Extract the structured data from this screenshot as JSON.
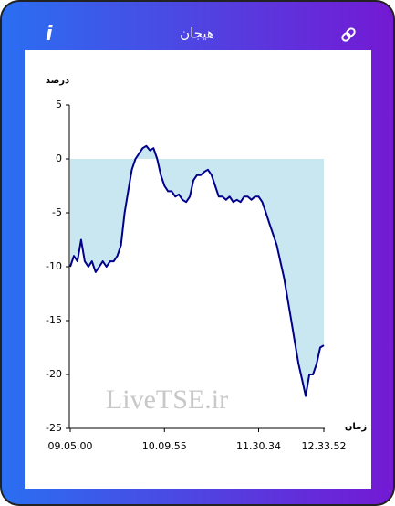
{
  "header": {
    "title": "هیجان",
    "info": "i"
  },
  "chart_data": {
    "type": "line",
    "y_label": "درصد",
    "x_label": "زمان",
    "watermark": "LiveTSE.ir",
    "categories": [
      "09.05.00",
      null,
      null,
      null,
      null,
      null,
      null,
      null,
      null,
      null,
      null,
      null,
      null,
      null,
      null,
      null,
      null,
      null,
      null,
      null,
      null,
      null,
      null,
      null,
      null,
      null,
      "10.09.55",
      null,
      null,
      null,
      null,
      null,
      null,
      null,
      null,
      null,
      null,
      null,
      null,
      null,
      null,
      null,
      null,
      null,
      null,
      null,
      null,
      null,
      null,
      null,
      null,
      null,
      "11.30.34",
      null,
      null,
      null,
      null,
      null,
      null,
      null,
      null,
      null,
      null,
      null,
      null,
      null,
      null,
      null,
      null,
      null,
      "12.33.52"
    ],
    "series": [
      {
        "color": "#00008b",
        "fill_color": "#c9e7f1",
        "values": [
          -10,
          -9,
          -9.5,
          -7.5,
          -9.5,
          -10,
          -9.5,
          -10.5,
          -10,
          -9.5,
          -10,
          -9.5,
          -9.5,
          -9,
          -8,
          -5,
          -3,
          -1,
          0,
          0.5,
          1,
          1.2,
          0.8,
          1,
          0,
          -1.5,
          -2.5,
          -3,
          -3,
          -3.5,
          -3.3,
          -3.8,
          -4,
          -3.5,
          -2,
          -1.5,
          -1.5,
          -1.2,
          -1,
          -1.5,
          -2.5,
          -3.5,
          -3.5,
          -3.8,
          -3.5,
          -4,
          -3.8,
          -4,
          -3.5,
          -3.5,
          -3.8,
          -3.5,
          -3.5,
          -4,
          -5,
          -6,
          -7,
          -8,
          -9.5,
          -11,
          -13,
          -15,
          -17,
          -19,
          -20.5,
          -22,
          -20,
          -20,
          -19,
          -17.5,
          -17.3
        ]
      }
    ],
    "ylim": [
      -25,
      5
    ],
    "yticks": [
      -25,
      -20,
      -15,
      -10,
      -5,
      0,
      5
    ]
  }
}
